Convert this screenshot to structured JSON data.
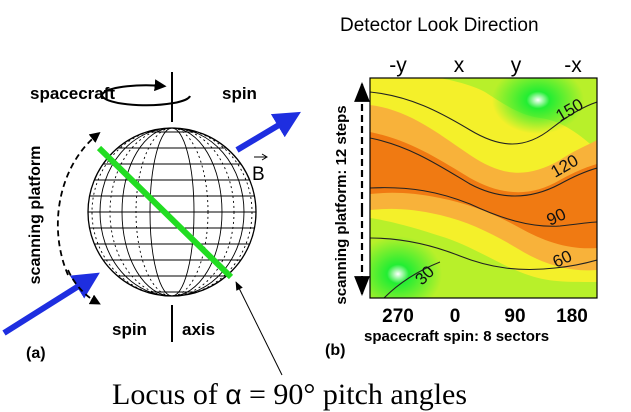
{
  "left_panel": {
    "label_spacecraft": "spacecraft",
    "label_spin_top": "spin",
    "label_scanning_platform": "scanning platform",
    "label_b": "B",
    "label_spin_bottom": "spin",
    "label_axis": "axis",
    "panel_letter": "(a)"
  },
  "right_panel": {
    "title": "Detector Look Direction",
    "top_ticks": [
      "-y",
      "x",
      "y",
      "-x"
    ],
    "left_axis_label": "scanning platform: 12 steps",
    "bottom_ticks": [
      "270",
      "0",
      "90",
      "180"
    ],
    "bottom_axis_label": "spacecraft spin: 8 sectors",
    "panel_letter": "(b)",
    "contour_labels": [
      "150",
      "120",
      "90",
      "60",
      "30"
    ]
  },
  "caption": {
    "prefix": "Locus of ",
    "symbol": "α",
    "suffix": " = 90° pitch angles"
  },
  "colors": {
    "field_arrow": "#1e2ee0",
    "locus_line": "#22dd22",
    "contour_orange": "#f07a12",
    "contour_light_orange": "#f8b23a",
    "contour_yellow": "#f4f02a",
    "contour_yellow_green": "#b8f02a",
    "contour_green": "#22ee33"
  }
}
